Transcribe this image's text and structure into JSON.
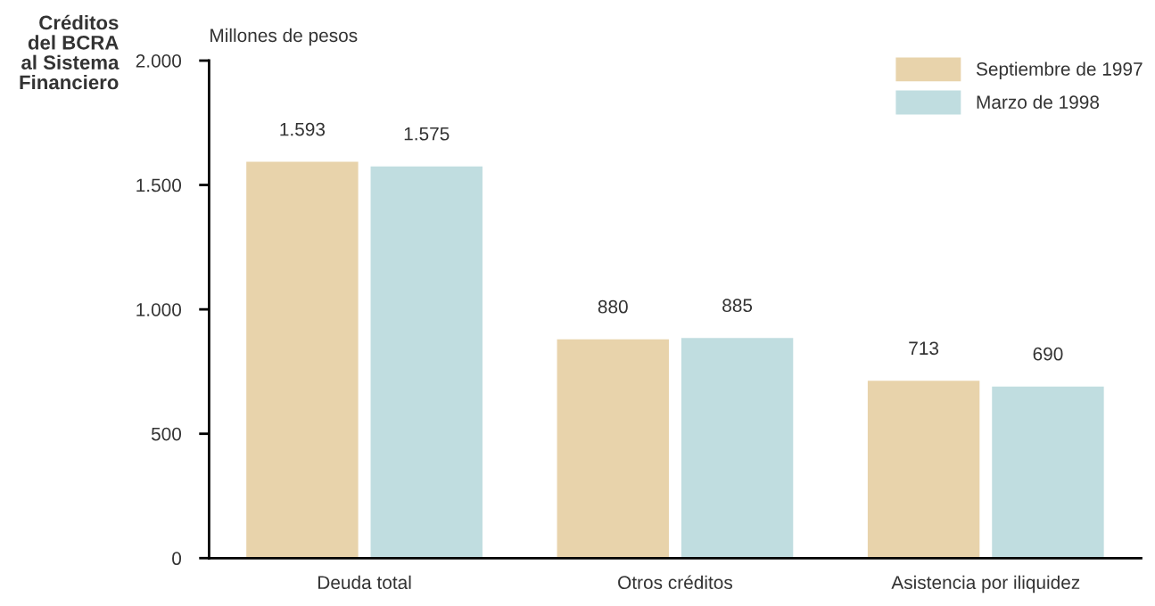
{
  "chart_data": {
    "type": "bar",
    "title": "Créditos\ndel BCRA\nal Sistema\nFinanciero",
    "ylabel": "Millones de pesos",
    "categories": [
      "Deuda total",
      "Otros créditos",
      "Asistencia por iliquidez"
    ],
    "series": [
      {
        "name": "Septiembre de 1997",
        "color": "#e8d3ab",
        "values": [
          1593,
          880,
          713
        ],
        "value_labels": [
          "1.593",
          "880",
          "713"
        ]
      },
      {
        "name": "Marzo de 1998",
        "color": "#c0dde0",
        "values": [
          1575,
          885,
          690
        ],
        "value_labels": [
          "1.575",
          "885",
          "690"
        ]
      }
    ],
    "ylim": [
      0,
      2000
    ],
    "yticks": [
      0,
      500,
      {
        "value": 1000,
        "label": "1.000"
      },
      {
        "value": 1500,
        "label": "1.500"
      },
      {
        "value": 2000,
        "label": "2.000"
      }
    ],
    "grid": false,
    "legend": "top right"
  }
}
